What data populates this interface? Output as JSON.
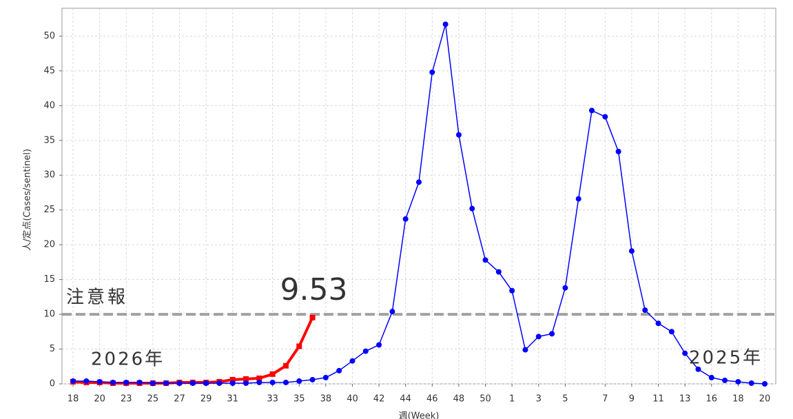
{
  "chart_data": {
    "type": "line",
    "x_label": "週(Week)",
    "y_label": "人/定点(Cases/sentinel)",
    "categories": [
      "18",
      null,
      "20",
      null,
      "23",
      null,
      "25",
      null,
      "27",
      null,
      "29",
      null,
      "31",
      null,
      null,
      "33",
      null,
      "35",
      null,
      "38",
      null,
      "40",
      null,
      "42",
      null,
      "44",
      null,
      "46",
      null,
      "48",
      null,
      "50",
      null,
      "1",
      null,
      "3",
      null,
      "5",
      null,
      null,
      "7",
      null,
      "9",
      null,
      "11",
      null,
      "13",
      null,
      "16",
      null,
      "18",
      null,
      "20"
    ],
    "series": [
      {
        "name": "2026年",
        "color": "#ff0000",
        "marker": "square",
        "values": [
          0.3,
          0.2,
          0.2,
          0.1,
          0.1,
          0.1,
          0.1,
          0.1,
          0.2,
          0.2,
          0.2,
          0.3,
          0.6,
          0.7,
          0.8,
          1.4,
          2.6,
          5.4,
          9.53,
          null,
          null,
          null,
          null,
          null,
          null,
          null,
          null,
          null,
          null,
          null,
          null,
          null,
          null,
          null,
          null,
          null,
          null,
          null,
          null,
          null,
          null,
          null,
          null,
          null,
          null,
          null,
          null,
          null,
          null,
          null,
          null,
          null,
          null
        ]
      },
      {
        "name": "2025年",
        "color": "#0000ff",
        "marker": "circle",
        "values": [
          0.4,
          0.4,
          0.3,
          0.2,
          0.2,
          0.2,
          0.1,
          0.1,
          0.1,
          0.1,
          0.1,
          0.1,
          0.1,
          0.1,
          0.2,
          0.2,
          0.2,
          0.4,
          0.6,
          0.9,
          1.9,
          3.3,
          4.7,
          5.6,
          10.4,
          23.7,
          29.0,
          44.8,
          51.7,
          35.8,
          25.2,
          17.8,
          16.1,
          13.4,
          4.9,
          6.8,
          7.2,
          13.8,
          26.6,
          39.3,
          38.4,
          33.4,
          19.1,
          10.6,
          8.7,
          7.5,
          4.4,
          2.1,
          0.9,
          0.5,
          0.3,
          0.1,
          0.0
        ]
      }
    ],
    "threshold": {
      "value": 10,
      "label": "注意報",
      "color": "#a0a0a0"
    },
    "ylim": [
      0,
      54
    ],
    "yticks": [
      0,
      5,
      10,
      15,
      20,
      25,
      30,
      35,
      40,
      45,
      50
    ],
    "grid": true
  }
}
